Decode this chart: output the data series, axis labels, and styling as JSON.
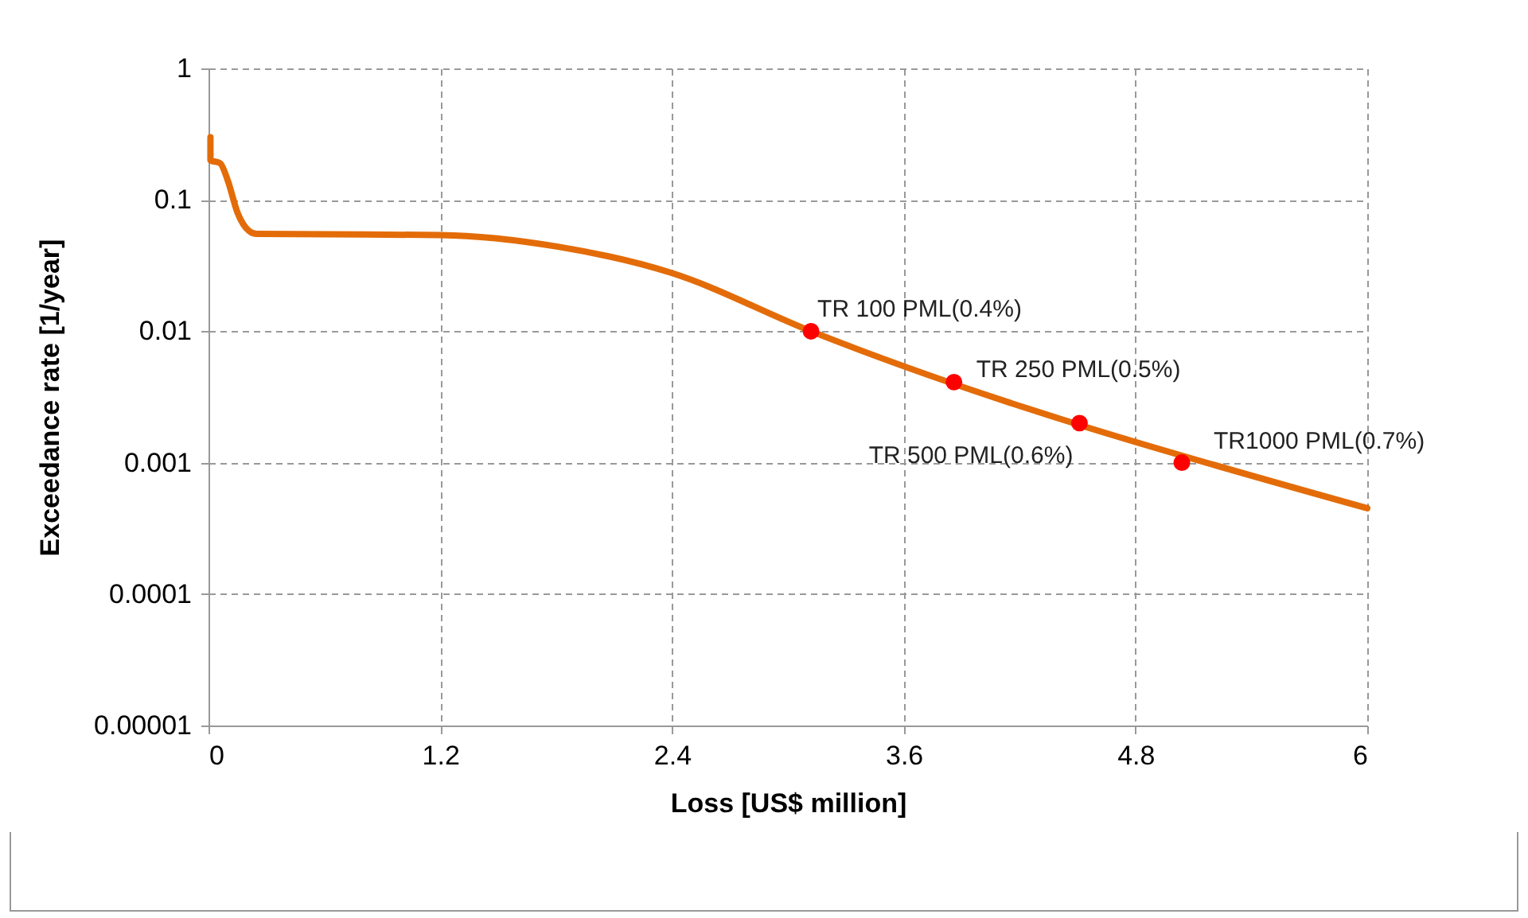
{
  "chart_data": {
    "type": "line",
    "xlabel": "Loss [US$ million]",
    "ylabel": "Exceedance rate [1/year]",
    "log": "y",
    "xlim": [
      0,
      6
    ],
    "xticks": [
      0,
      1.2,
      2.4,
      3.6,
      4.8,
      6
    ],
    "ylim": [
      1e-05,
      1
    ],
    "yticks": [
      {
        "value": 1e-05,
        "label": "0.00001"
      },
      0.0001,
      0.001,
      0.01,
      0.1,
      1
    ],
    "grid": true,
    "series": [
      {
        "color": "#e36c09",
        "x": [
          0.01,
          0.01,
          0.06,
          0.1,
          0.15,
          0.21,
          0.25,
          1.2,
          1.81,
          2.39,
          3.12,
          6
        ],
        "values": [
          0.3,
          0.2,
          0.19,
          0.14,
          0.08,
          0.058,
          0.055,
          0.054,
          0.044,
          0.028,
          0.01,
          0.00045
        ]
      },
      {
        "type": "scatter",
        "color": "#ff0000",
        "marker": "circle",
        "x": [
          3.12,
          3.86,
          4.51,
          5.04
        ],
        "values": [
          0.01,
          0.0041,
          0.002,
          0.001
        ]
      }
    ],
    "annotations": [
      {
        "text": "TR 100 PML(0.4%)",
        "x": 3.12,
        "y": 0.01
      },
      {
        "text": "TR 250 PML(0.5%)",
        "x": 3.86,
        "y": 0.0041
      },
      {
        "text": "TR 500 PML(0.6%)",
        "x": 4.51,
        "y": 0.002
      },
      {
        "text": "TR1000 PML(0.7%)",
        "x": 5.04,
        "y": 0.001
      }
    ]
  }
}
